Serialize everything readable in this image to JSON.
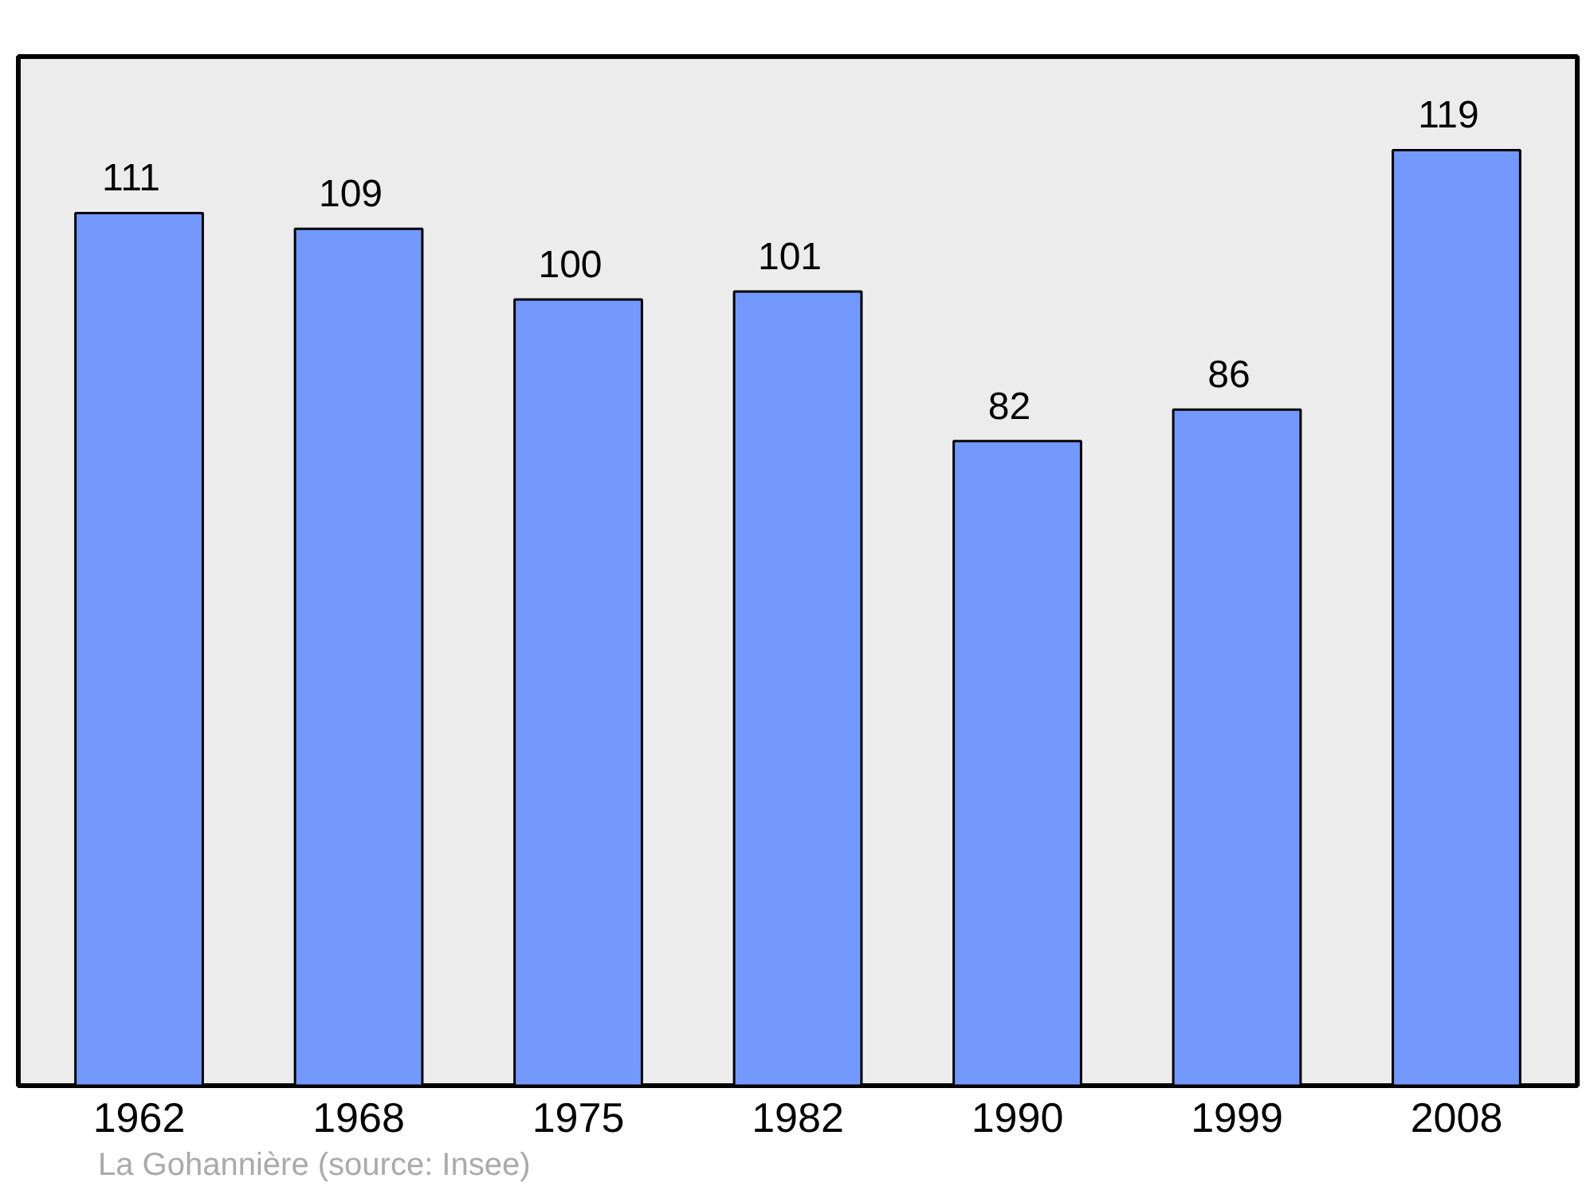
{
  "chart_data": {
    "type": "bar",
    "categories": [
      "1962",
      "1968",
      "1975",
      "1982",
      "1990",
      "1999",
      "2008"
    ],
    "values": [
      111,
      109,
      100,
      101,
      82,
      86,
      119
    ],
    "color": "#7399ff",
    "data_labels": true,
    "grid": false,
    "annotations": [
      "La Gohannière    (source: Insee)"
    ]
  }
}
